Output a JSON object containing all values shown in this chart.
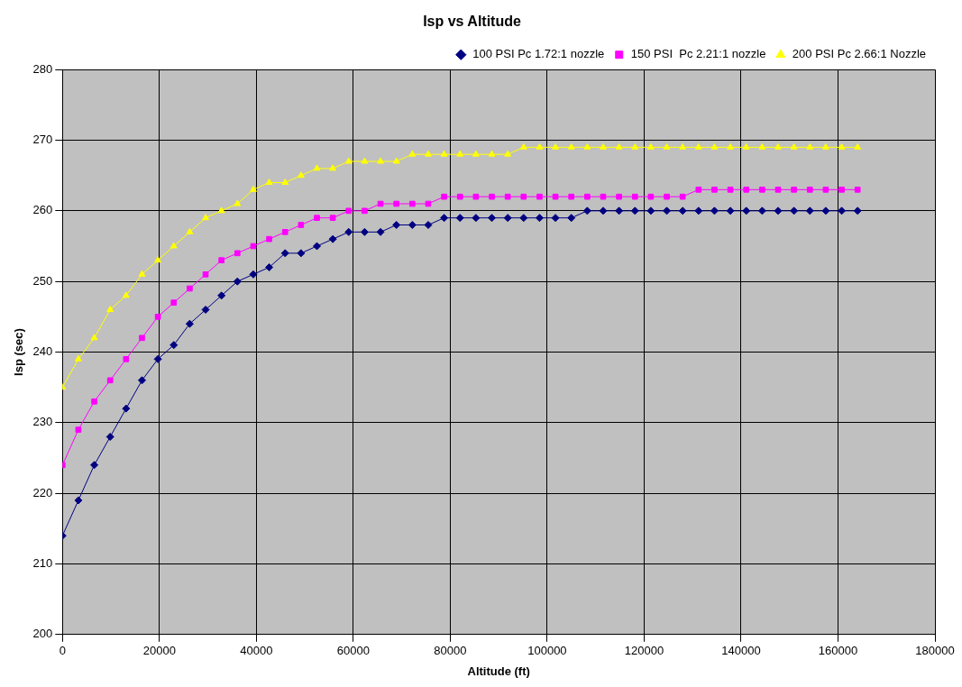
{
  "chart_data": {
    "type": "line",
    "title": "Isp vs Altitude",
    "xlabel": "Altitude (ft)",
    "ylabel": "Isp (sec)",
    "x": [
      0,
      3281,
      6562,
      9843,
      13123,
      16404,
      19685,
      22966,
      26247,
      29528,
      32808,
      36089,
      39370,
      42651,
      45932,
      49213,
      52493,
      55774,
      59055,
      62336,
      65617,
      68898,
      72178,
      75459,
      78740,
      82021,
      85302,
      88583,
      91864,
      95144,
      98425,
      101706,
      104987,
      108268,
      111549,
      114829,
      118110,
      121391,
      124672,
      127953,
      131234,
      134514,
      137795,
      141076,
      144357,
      147638,
      150919,
      154199,
      157480,
      160761,
      164042
    ],
    "series": [
      {
        "name": "100 PSI Pc 1.72:1 nozzle",
        "color": "#000080",
        "marker": "diamond",
        "values": [
          214,
          219,
          224,
          228,
          232,
          236,
          239,
          241,
          244,
          246,
          248,
          250,
          251,
          252,
          254,
          254,
          255,
          256,
          257,
          257,
          257,
          258,
          258,
          258,
          259,
          259,
          259,
          259,
          259,
          259,
          259,
          259,
          259,
          260,
          260,
          260,
          260,
          260,
          260,
          260,
          260,
          260,
          260,
          260,
          260,
          260,
          260,
          260,
          260,
          260,
          260
        ]
      },
      {
        "name": "150 PSI  Pc 2.21:1 nozzle",
        "color": "#ff00ff",
        "marker": "square",
        "values": [
          224,
          229,
          233,
          236,
          239,
          242,
          245,
          247,
          249,
          251,
          253,
          254,
          255,
          256,
          257,
          258,
          259,
          259,
          260,
          260,
          261,
          261,
          261,
          261,
          262,
          262,
          262,
          262,
          262,
          262,
          262,
          262,
          262,
          262,
          262,
          262,
          262,
          262,
          262,
          262,
          263,
          263,
          263,
          263,
          263,
          263,
          263,
          263,
          263,
          263,
          263
        ]
      },
      {
        "name": "200 PSI Pc 2.66:1 Nozzle",
        "color": "#ffff00",
        "marker": "triangle",
        "values": [
          235,
          239,
          242,
          246,
          248,
          251,
          253,
          255,
          257,
          259,
          260,
          261,
          263,
          264,
          264,
          265,
          266,
          266,
          267,
          267,
          267,
          267,
          268,
          268,
          268,
          268,
          268,
          268,
          268,
          269,
          269,
          269,
          269,
          269,
          269,
          269,
          269,
          269,
          269,
          269,
          269,
          269,
          269,
          269,
          269,
          269,
          269,
          269,
          269,
          269,
          269
        ]
      }
    ],
    "xlim": [
      0,
      180000
    ],
    "xticks": [
      0,
      20000,
      40000,
      60000,
      80000,
      100000,
      120000,
      140000,
      160000,
      180000
    ],
    "ylim": [
      200,
      280
    ],
    "yticks": [
      200,
      210,
      220,
      230,
      240,
      250,
      260,
      270,
      280
    ],
    "grid": true,
    "legend": "top right",
    "line_style": "solid"
  }
}
